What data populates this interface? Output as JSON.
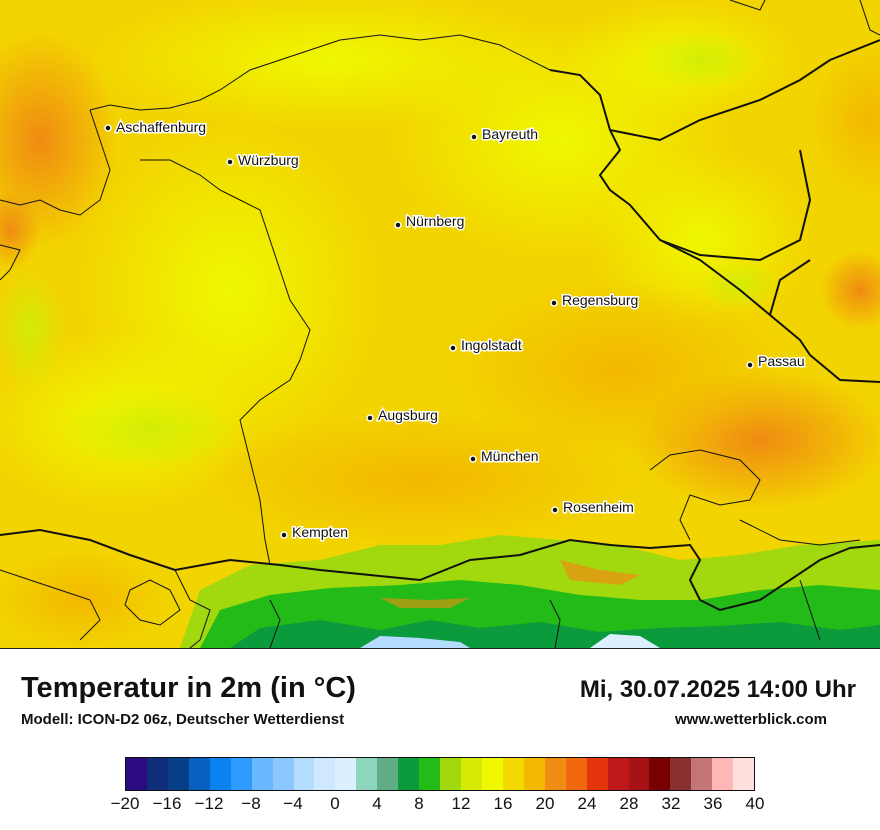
{
  "map": {
    "cities": [
      {
        "name": "Aschaffenburg",
        "id": "aschaffenburg"
      },
      {
        "name": "Bayreuth",
        "id": "bayreuth"
      },
      {
        "name": "Würzburg",
        "id": "wuerzburg"
      },
      {
        "name": "Nürnberg",
        "id": "nuernberg"
      },
      {
        "name": "Regensburg",
        "id": "regensburg"
      },
      {
        "name": "Ingolstadt",
        "id": "ingolstadt"
      },
      {
        "name": "Passau",
        "id": "passau"
      },
      {
        "name": "Augsburg",
        "id": "augsburg"
      },
      {
        "name": "München",
        "id": "muenchen"
      },
      {
        "name": "Rosenheim",
        "id": "rosenheim"
      },
      {
        "name": "Kempten",
        "id": "kempten"
      }
    ]
  },
  "header": {
    "title": "Temperatur in 2m (in °C)",
    "subtitle": "Modell: ICON-D2 06z, Deutscher Wetterdienst",
    "datetime": "Mi, 30.07.2025 14:00 Uhr",
    "site": "www.wetterblick.com"
  },
  "legend": {
    "colors": [
      "#2b0a82",
      "#0f2f7d",
      "#073f86",
      "#0860c0",
      "#0a82f0",
      "#2f9bff",
      "#6ab8ff",
      "#8cc8ff",
      "#b4dcff",
      "#cfe7ff",
      "#dcefff",
      "#8ed6bb",
      "#5fac86",
      "#0b9a3c",
      "#22bb18",
      "#a2d80e",
      "#d5eb04",
      "#eff800",
      "#f3d900",
      "#f3b800",
      "#f18c13",
      "#f0690f",
      "#e5350c",
      "#c0171b",
      "#a61216",
      "#780000",
      "#8a3030",
      "#c47575",
      "#ffb6b6",
      "#ffdede"
    ],
    "tick_labels": [
      "−20",
      "−16",
      "−12",
      "−8",
      "−4",
      "0",
      "4",
      "8",
      "12",
      "16",
      "20",
      "24",
      "28",
      "32",
      "36",
      "40"
    ]
  }
}
